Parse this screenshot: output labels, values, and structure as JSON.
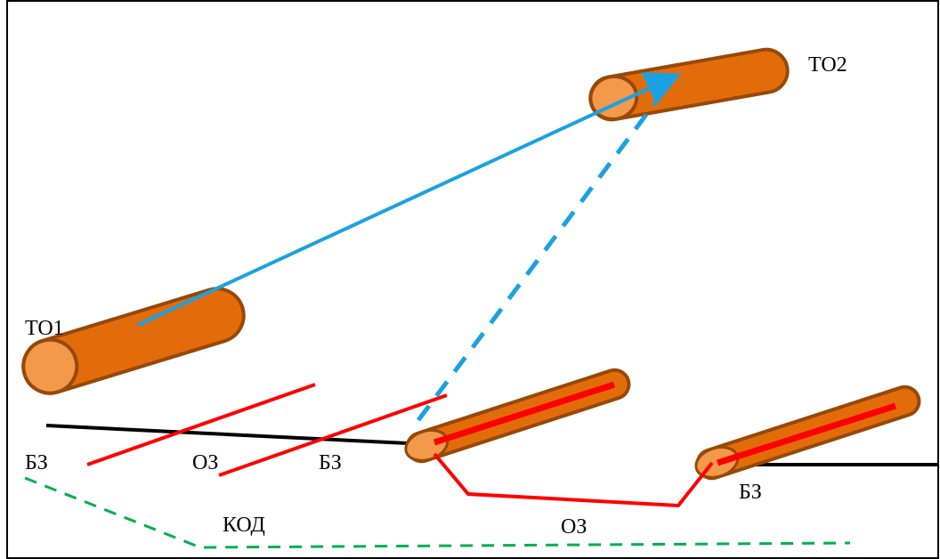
{
  "labels": {
    "to1": "ТО1",
    "to2": "ТО2",
    "bz_left": "БЗ",
    "oz_left": "ОЗ",
    "bz_mid": "БЗ",
    "kod": "КОД",
    "oz_bottom": "ОЗ",
    "bz_right": "БЗ"
  },
  "colors": {
    "tube_body": "#e36c0a",
    "tube_end": "#f2994a",
    "tube_outline": "#984807",
    "red_line": "#ff0000",
    "blue_arrow": "#1ba1e2",
    "green_dashed": "#00b050",
    "black_line": "#000000",
    "frame": "#000000"
  }
}
